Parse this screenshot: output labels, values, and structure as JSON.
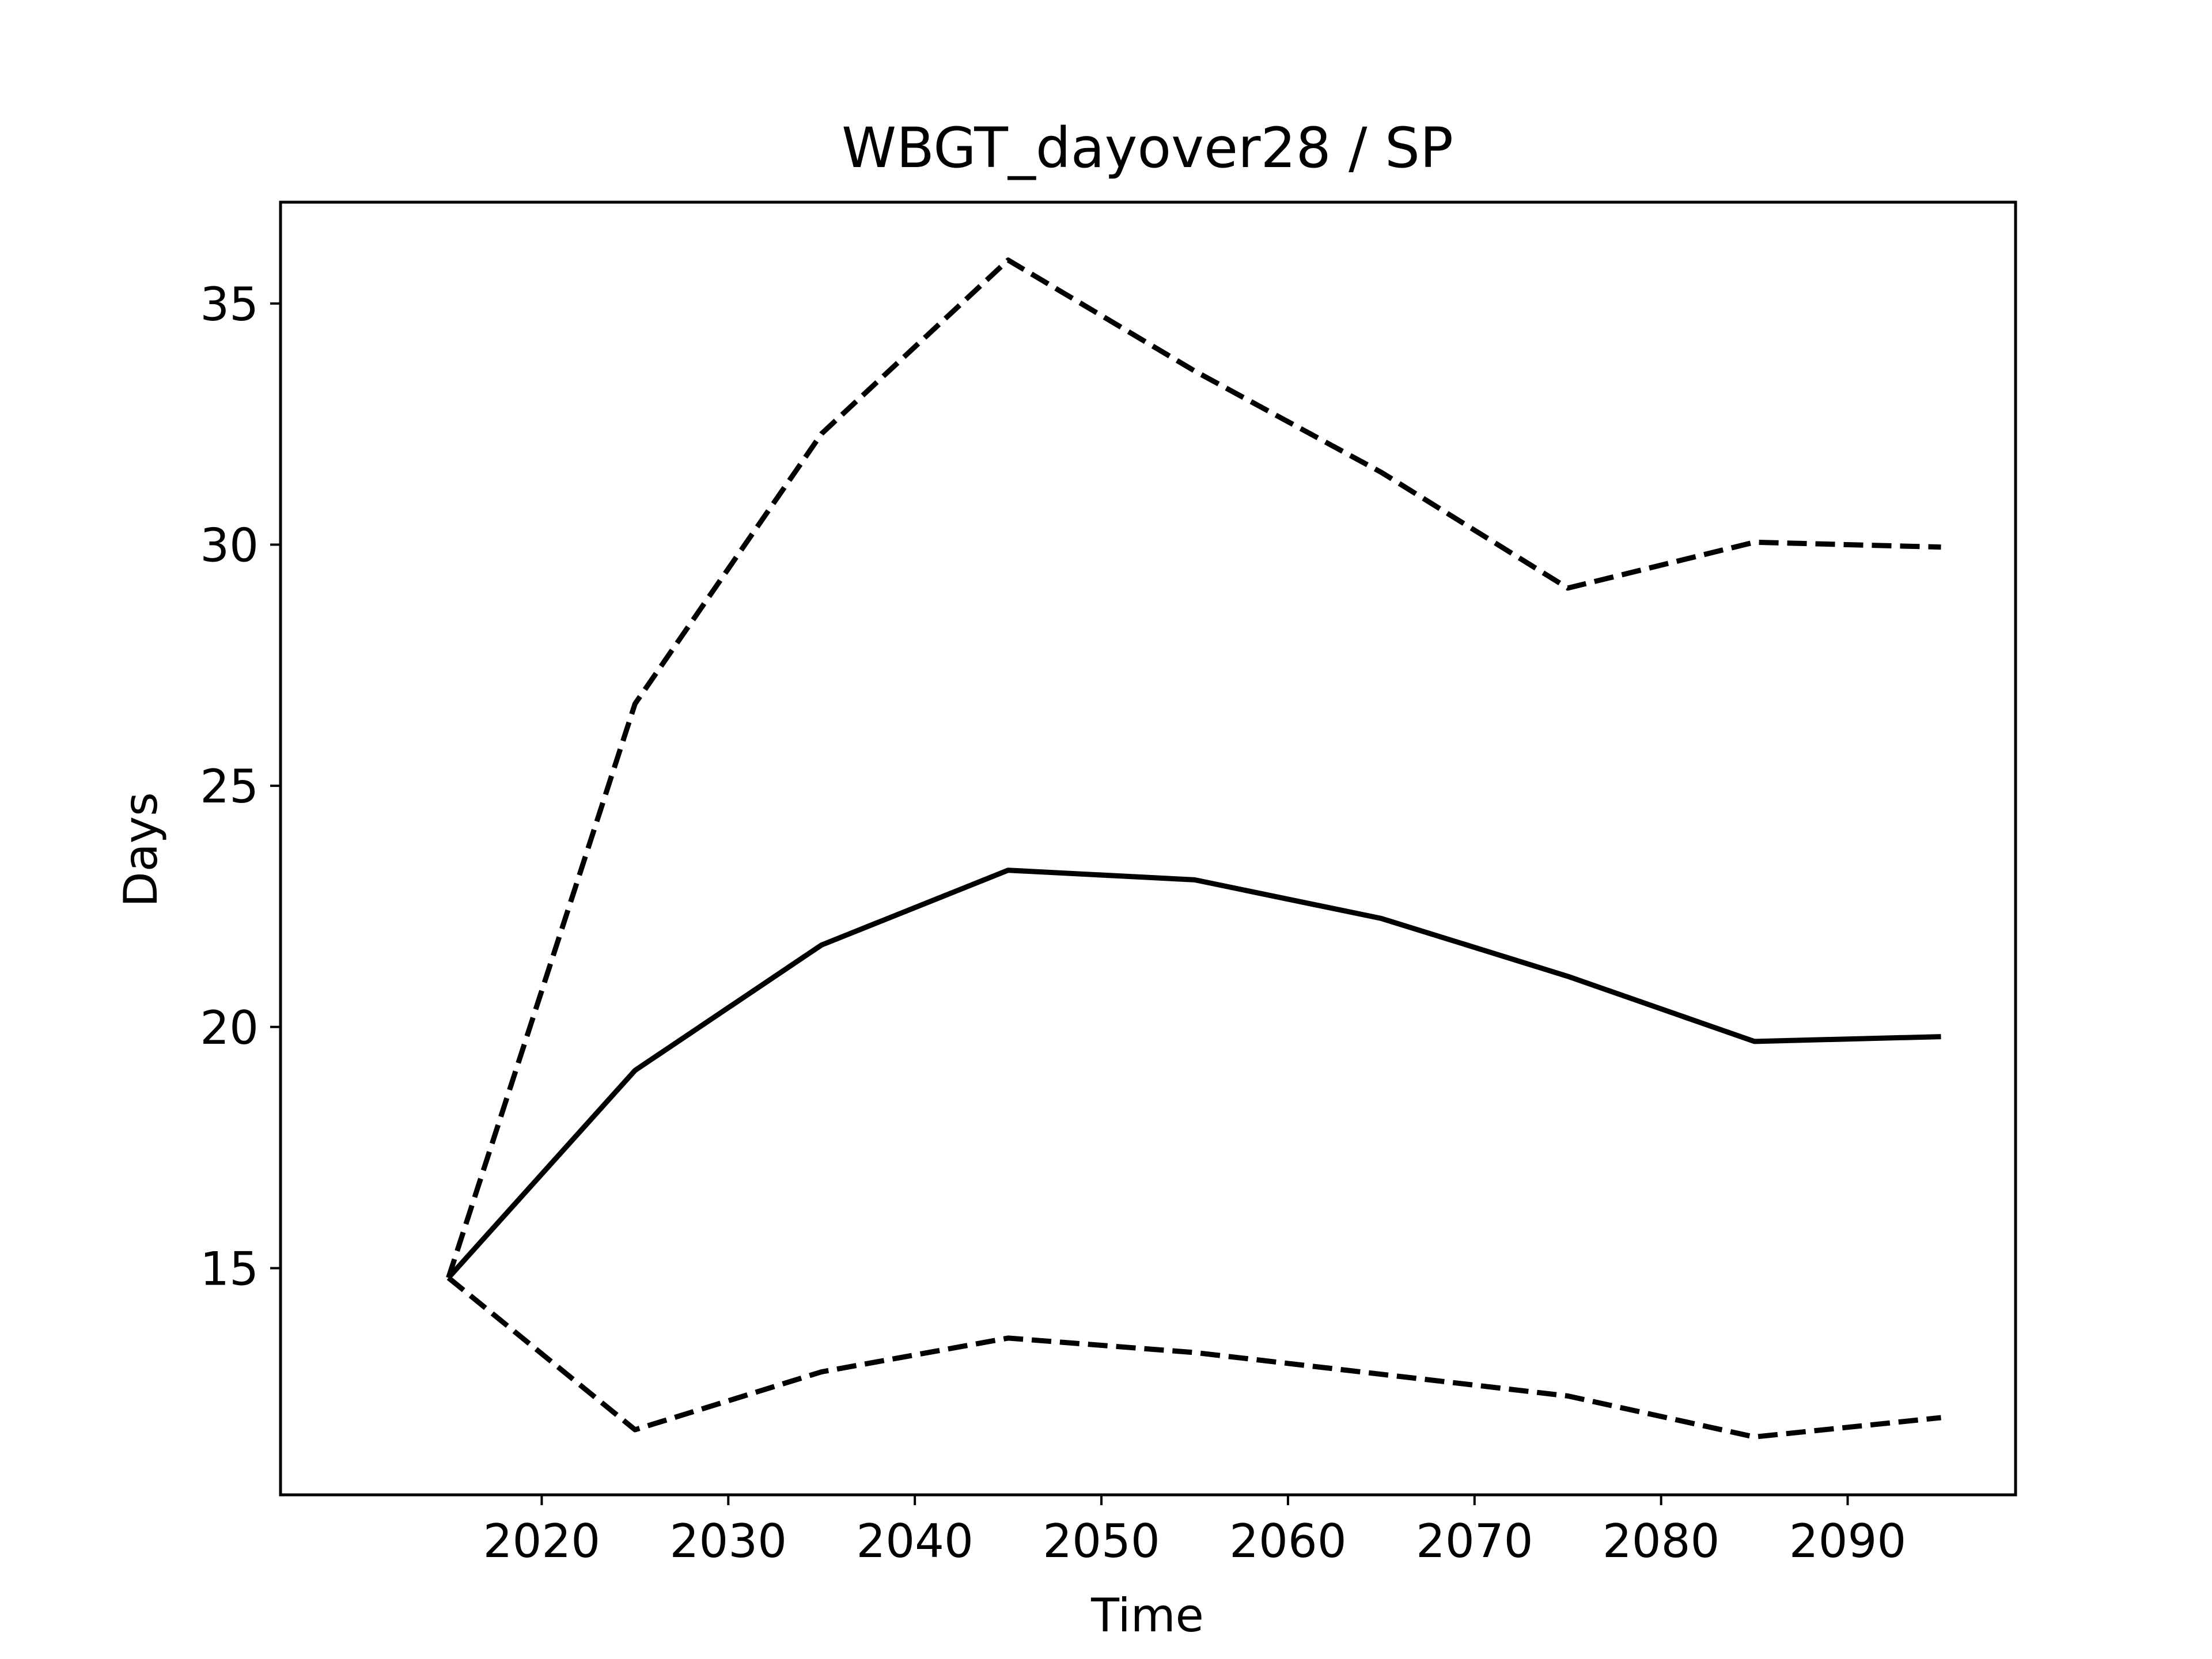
{
  "chart_data": {
    "type": "line",
    "title": "WBGT_dayover28 / SP",
    "xlabel": "Time",
    "ylabel": "Days",
    "x": [
      2015,
      2025,
      2035,
      2045,
      2055,
      2065,
      2075,
      2085,
      2095
    ],
    "xlim": [
      2006,
      2099
    ],
    "ylim": [
      10.3,
      37.1
    ],
    "xticks": [
      2020,
      2030,
      2040,
      2050,
      2060,
      2070,
      2080,
      2090
    ],
    "yticks": [
      15,
      20,
      25,
      30,
      35
    ],
    "xtick_labels": [
      "2020",
      "2030",
      "2040",
      "2050",
      "2060",
      "2070",
      "2080",
      "2090"
    ],
    "ytick_labels": [
      "15",
      "20",
      "25",
      "30",
      "35"
    ],
    "grid": false,
    "legend": "none",
    "line_color": "#000000",
    "series": [
      {
        "style": "dashed",
        "values": [
          14.8,
          26.7,
          32.3,
          35.9,
          33.6,
          31.5,
          29.1,
          30.05,
          29.95
        ]
      },
      {
        "style": "solid",
        "values": [
          14.8,
          19.1,
          21.7,
          23.25,
          23.05,
          22.25,
          21.05,
          19.7,
          19.8
        ]
      },
      {
        "style": "dashed",
        "values": [
          14.8,
          11.65,
          12.85,
          13.55,
          13.25,
          12.8,
          12.35,
          11.5,
          11.9
        ]
      }
    ]
  }
}
